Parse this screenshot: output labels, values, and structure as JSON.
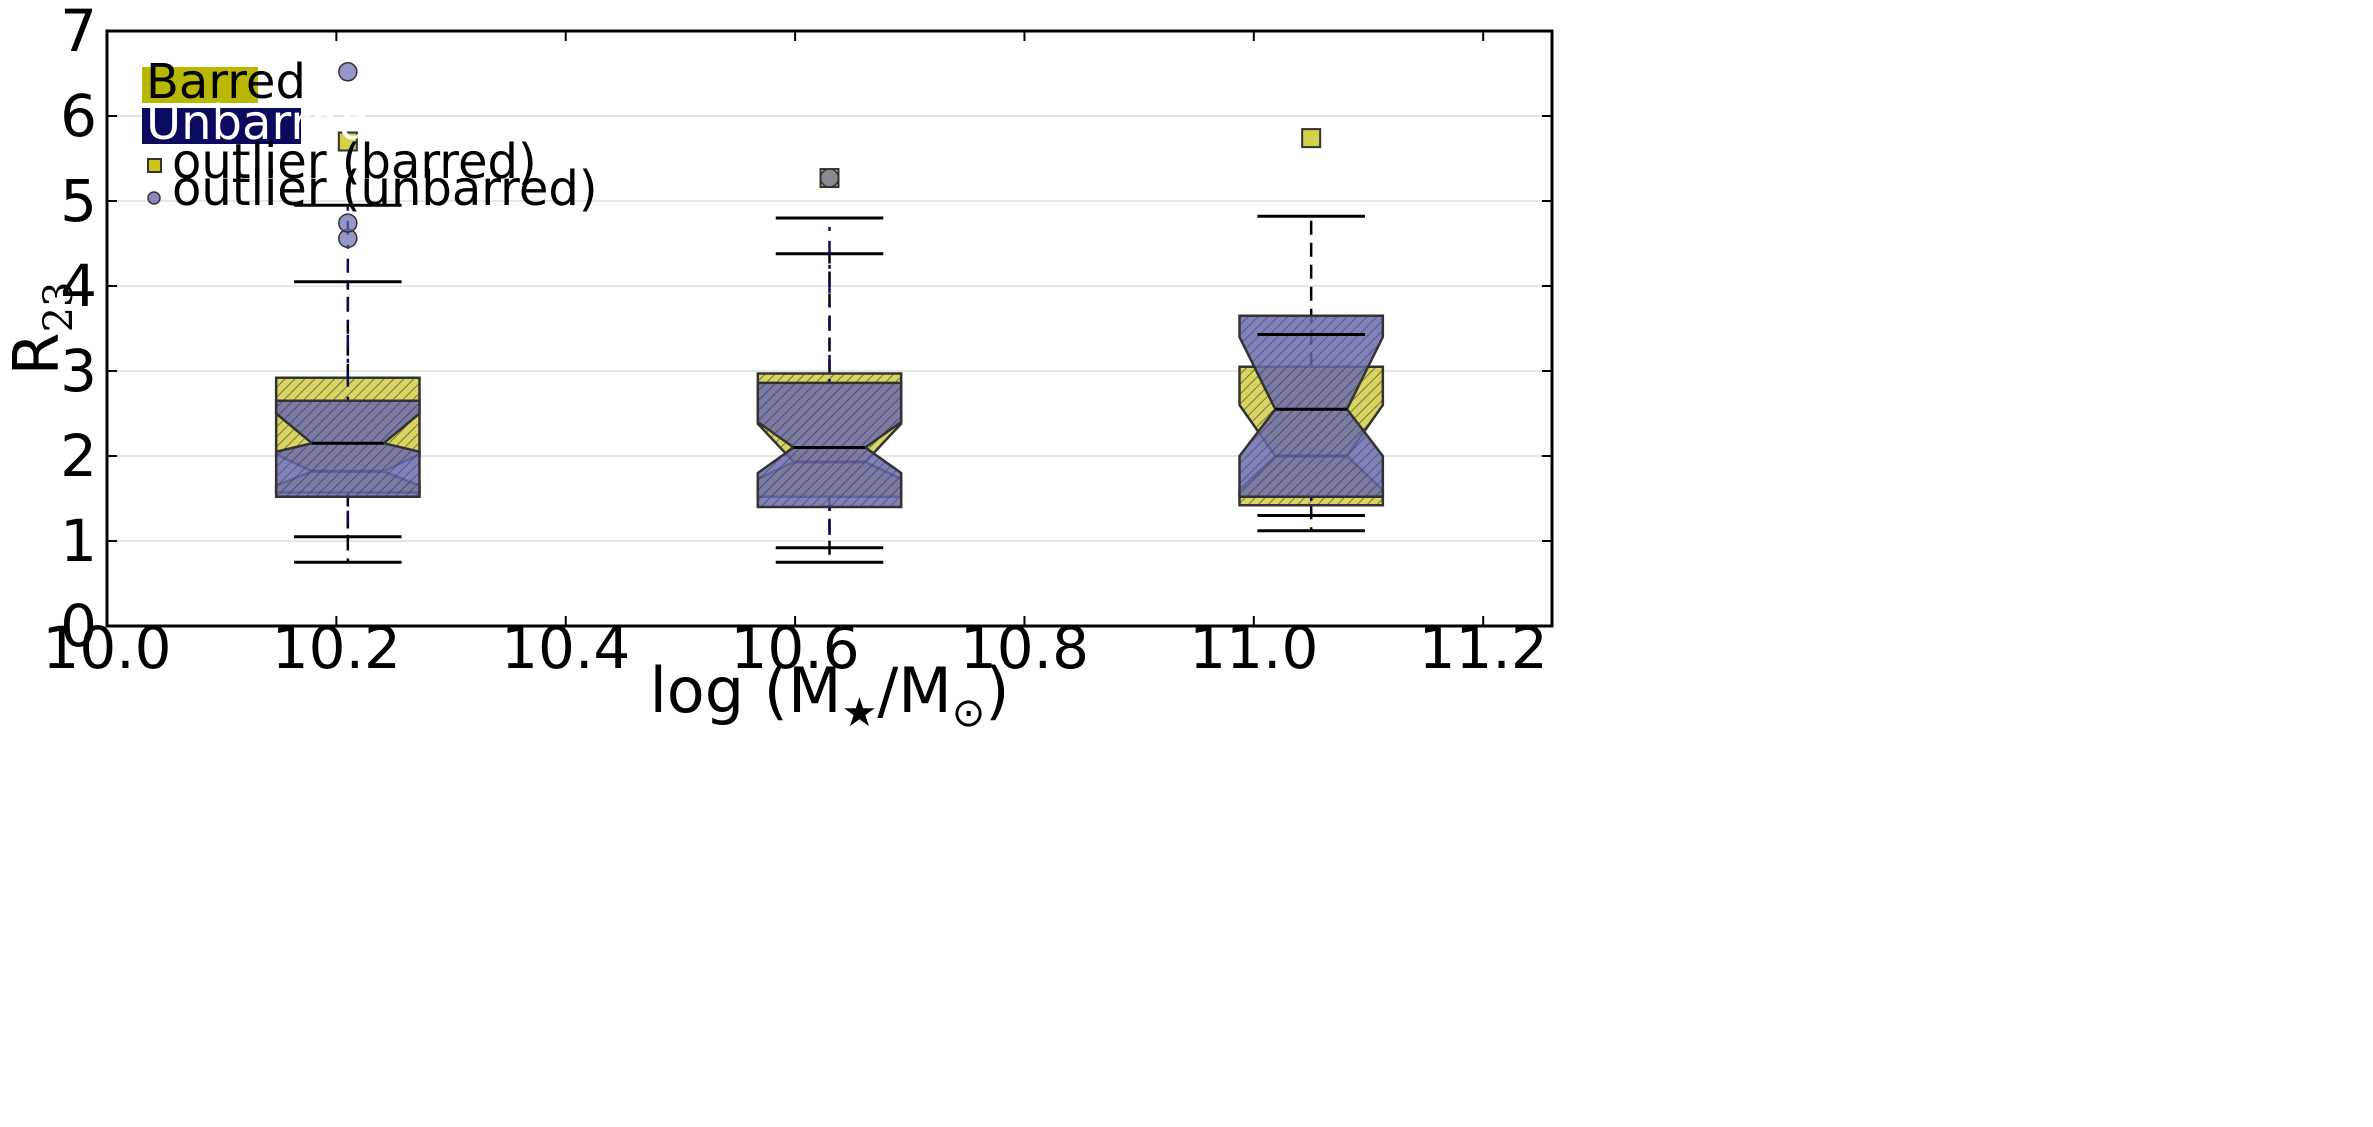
{
  "colors": {
    "barred_fill": "#c8c41c",
    "barred_patch": "#b8b800",
    "unbarred_fill": "#6b6bb0",
    "unbarred_patch": "#0a0a5e",
    "box_edge": "#333333",
    "grid": "#dddddd",
    "whisker_dash": "#0a0a5e"
  },
  "chart_data": {
    "type": "box",
    "xlabel_main": "log (M",
    "xlabel_sub1": "★",
    "xlabel_mid": "/M",
    "xlabel_sub2": "⊙",
    "xlabel_close": ")",
    "ylabel_main": "R",
    "ylabel_sub": "23",
    "xlim": [
      10.0,
      11.26
    ],
    "ylim": [
      0,
      7
    ],
    "xticks": [
      "10.0",
      "10.2",
      "10.4",
      "10.6",
      "10.8",
      "11.0",
      "11.2"
    ],
    "xtick_values": [
      10.0,
      10.2,
      10.4,
      10.6,
      10.8,
      11.0,
      11.2
    ],
    "yticks": [
      "0",
      "1",
      "2",
      "3",
      "4",
      "5",
      "6",
      "7"
    ],
    "ytick_values": [
      0,
      1,
      2,
      3,
      4,
      5,
      6,
      7
    ],
    "grid_y": true,
    "box_width": 0.125,
    "legend": {
      "barred_label": "Barred",
      "unbarred_label": "Unbarred",
      "outlier_barred_label": "outlier (barred)",
      "outlier_unbarred_label": "outlier (unbarred)",
      "placement": "top-left"
    },
    "series": [
      {
        "name": "Barred",
        "boxes": [
          {
            "x": 10.21,
            "q1": 1.57,
            "median": 1.82,
            "q3": 2.92,
            "notch_lo": 1.65,
            "notch_hi": 2.02,
            "whisker_lo": 0.75,
            "whisker_hi": 4.05,
            "outliers": [
              5.7
            ]
          },
          {
            "x": 10.63,
            "q1": 1.52,
            "median": 1.93,
            "q3": 2.97,
            "notch_lo": 1.73,
            "notch_hi": 2.38,
            "whisker_lo": 0.75,
            "whisker_hi": 4.38,
            "outliers": [
              5.27
            ]
          },
          {
            "x": 11.05,
            "q1": 1.42,
            "median": 2.0,
            "q3": 3.05,
            "notch_lo": 1.6,
            "notch_hi": 2.6,
            "whisker_lo": 1.12,
            "whisker_hi": 4.82,
            "outliers": [
              5.74
            ]
          }
        ]
      },
      {
        "name": "Unbarred",
        "boxes": [
          {
            "x": 10.21,
            "q1": 1.52,
            "median": 2.15,
            "q3": 2.65,
            "notch_lo": 2.05,
            "notch_hi": 2.5,
            "whisker_lo": 1.05,
            "whisker_hi": 4.95,
            "outliers": [
              4.56,
              4.74,
              6.52
            ]
          },
          {
            "x": 10.63,
            "q1": 1.4,
            "median": 2.1,
            "q3": 2.86,
            "notch_lo": 1.8,
            "notch_hi": 2.4,
            "whisker_lo": 0.92,
            "whisker_hi": 4.8,
            "outliers": [
              5.27
            ]
          },
          {
            "x": 11.05,
            "q1": 1.52,
            "median": 2.55,
            "q3": 3.65,
            "notch_lo": 2.0,
            "notch_hi": 3.4,
            "whisker_lo": 1.3,
            "whisker_hi": 3.43,
            "outliers": []
          }
        ]
      }
    ]
  }
}
